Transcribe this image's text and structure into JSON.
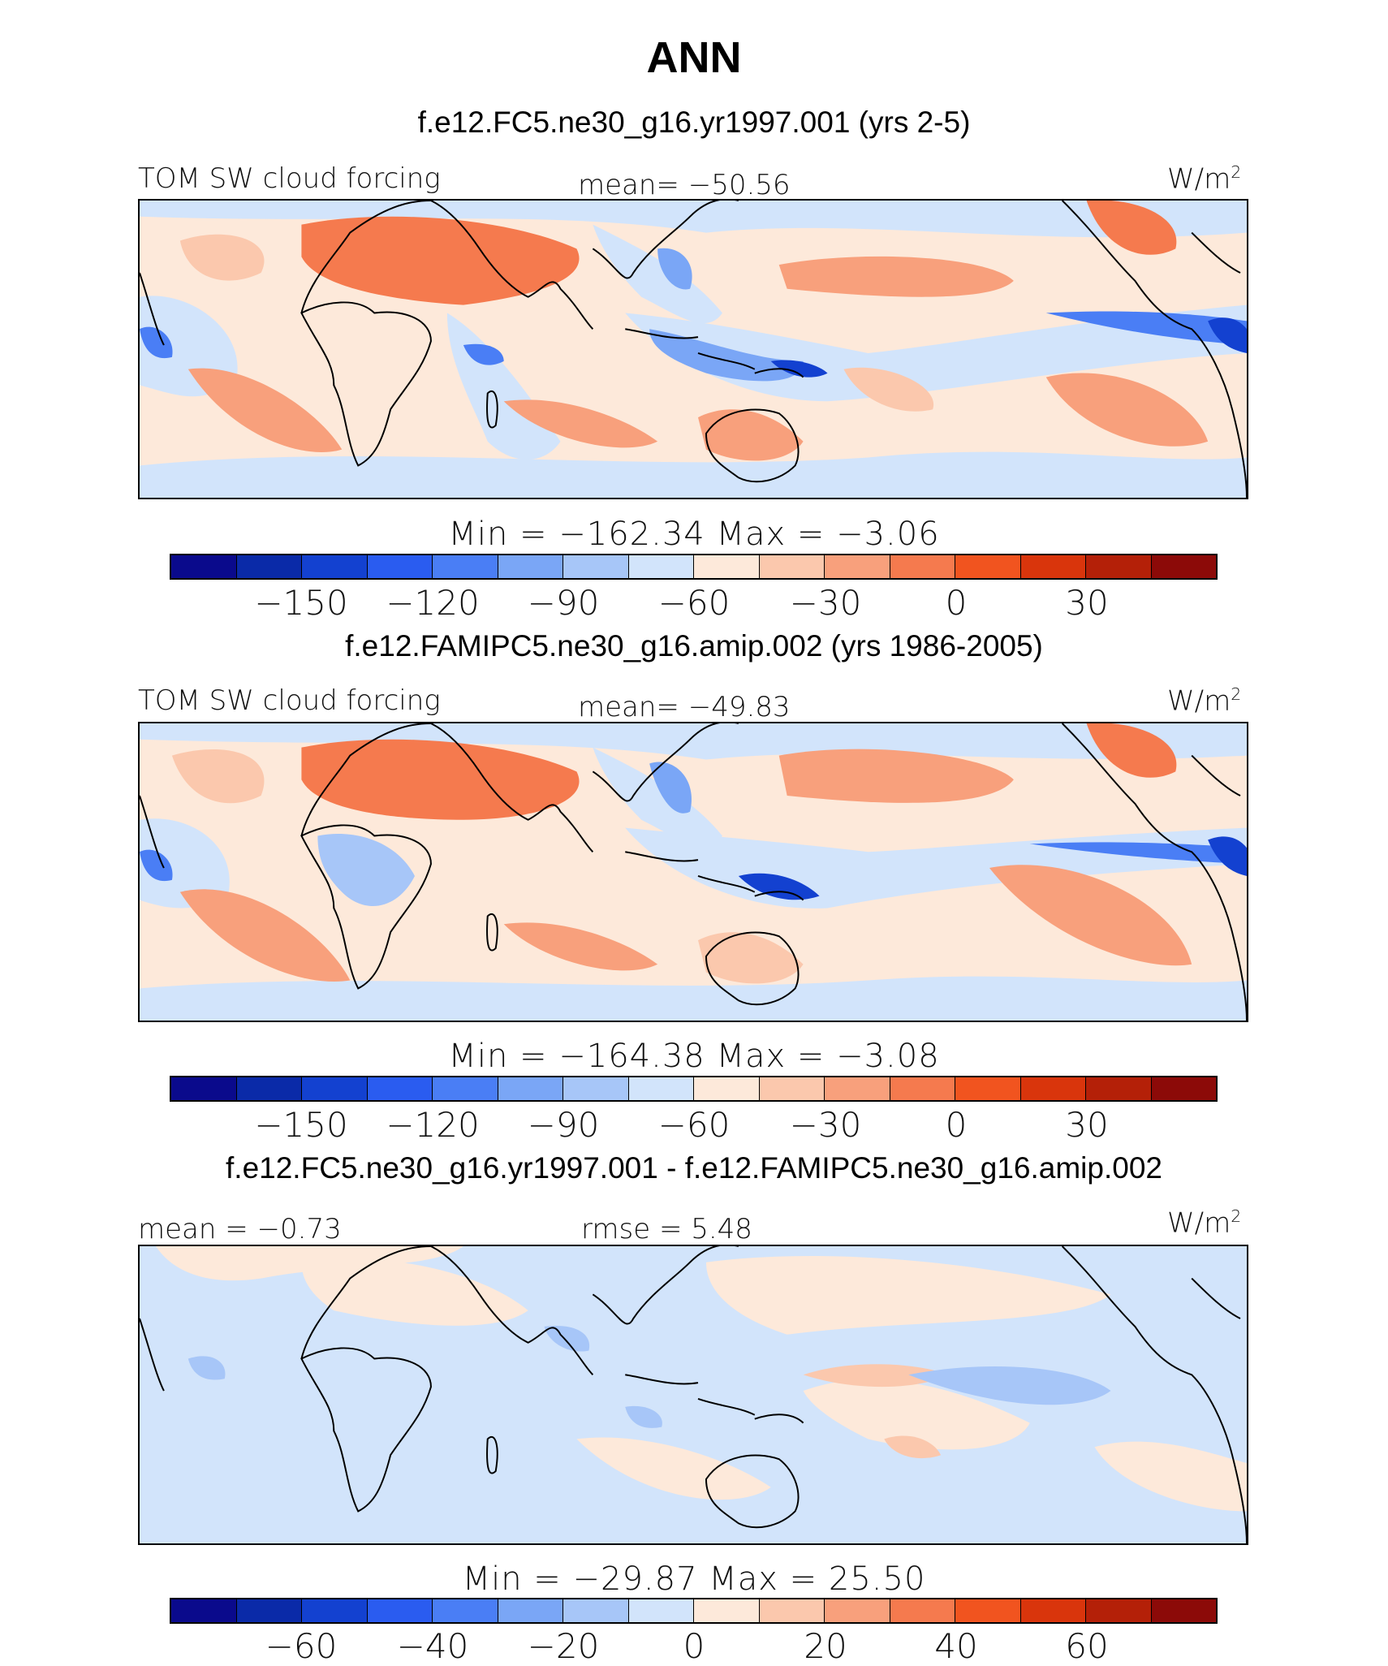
{
  "title": "ANN",
  "colors": [
    "#0a0a8c",
    "#0a2aa8",
    "#1341d0",
    "#2a5cf0",
    "#4a7ef5",
    "#7aa6f6",
    "#a7c6f8",
    "#d2e4fb",
    "#fde9da",
    "#fbc8ad",
    "#f8a07c",
    "#f57a4e",
    "#f1541f",
    "#d9350c",
    "#b42008",
    "#8c0a08"
  ],
  "panels": [
    {
      "case": "f.e12.FC5.ne30_g16.yr1997.001 (yrs 2-5)",
      "left_label": "TOM SW cloud forcing",
      "center_label": "mean= −50.56",
      "units": "W/m",
      "units_sup": "2",
      "minmax": "Min  =  −162.34  Max  =   −3.06",
      "ticks": [
        "−150",
        "−120",
        "−90",
        "−60",
        "−30",
        "0",
        "30"
      ]
    },
    {
      "case": "f.e12.FAMIPC5.ne30_g16.amip.002 (yrs 1986-2005)",
      "left_label": "TOM SW cloud forcing",
      "center_label": "mean= −49.83",
      "units": "W/m",
      "units_sup": "2",
      "minmax": "Min  =  −164.38  Max  =   −3.08",
      "ticks": [
        "−150",
        "−120",
        "−90",
        "−60",
        "−30",
        "0",
        "30"
      ]
    },
    {
      "case": "f.e12.FC5.ne30_g16.yr1997.001 - f.e12.FAMIPC5.ne30_g16.amip.002",
      "left_label": "mean =  −0.73",
      "center_label": "rmse =    5.48",
      "units": "W/m",
      "units_sup": "2",
      "minmax": "Min  =  −29.87  Max  =   25.50",
      "ticks": [
        "−60",
        "−40",
        "−20",
        "0",
        "20",
        "40",
        "60"
      ]
    }
  ]
}
